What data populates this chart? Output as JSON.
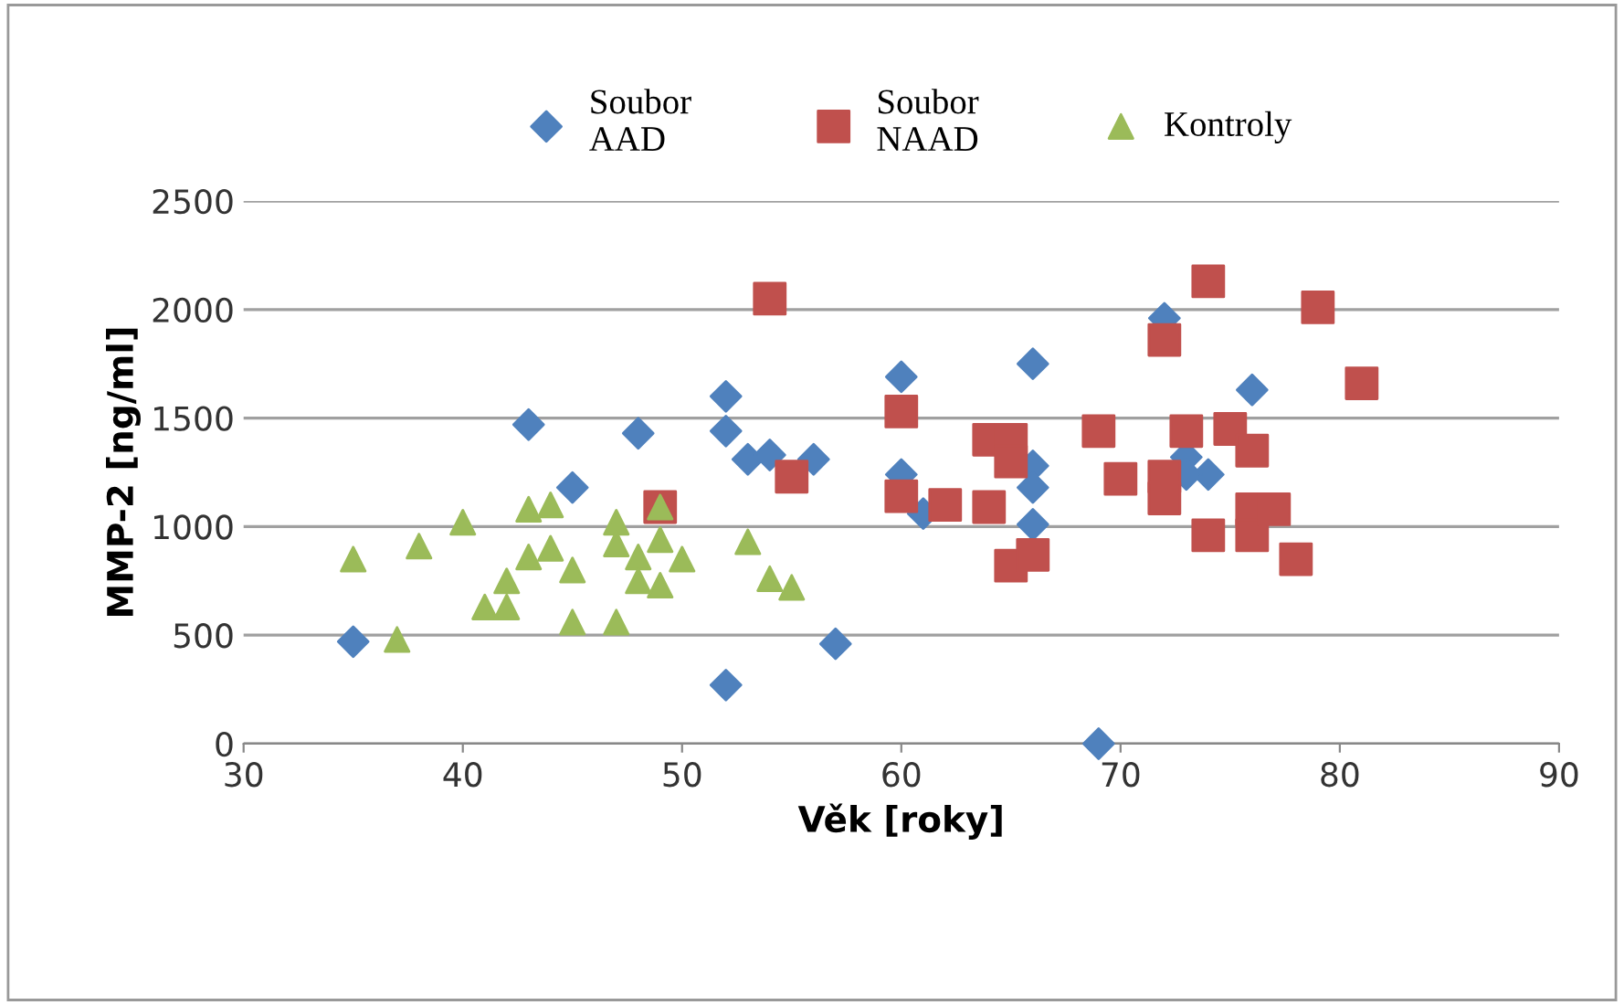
{
  "chart_data": {
    "type": "scatter",
    "xlabel": "Věk [roky]",
    "ylabel": "MMP-2 [ng/ml]",
    "xlim": [
      30,
      90
    ],
    "xticks": [
      30,
      40,
      50,
      60,
      70,
      80,
      90
    ],
    "ylim": [
      0,
      2500
    ],
    "yticks": [
      0,
      500,
      1000,
      1500,
      2000,
      2500
    ],
    "grid": "y",
    "legend": "top",
    "series": [
      {
        "name": "Soubor\nAAD",
        "color": "#4f81bd",
        "marker": "diamond",
        "x": [
          35,
          43,
          45,
          48,
          52,
          52,
          53,
          54,
          56,
          57,
          52,
          60,
          60,
          61,
          66,
          66,
          66,
          66,
          69,
          72,
          73,
          74,
          76,
          73
        ],
        "values": [
          470,
          1470,
          1180,
          1430,
          1600,
          1440,
          1310,
          1330,
          1310,
          460,
          270,
          1690,
          1240,
          1060,
          1750,
          1280,
          1180,
          1010,
          0,
          1960,
          1320,
          1240,
          1630,
          1240
        ]
      },
      {
        "name": "Soubor\nNAAD",
        "color": "#c0504d",
        "marker": "square",
        "x": [
          49,
          54,
          55,
          60,
          60,
          62,
          64,
          64,
          65,
          65,
          65,
          66,
          69,
          70,
          72,
          72,
          72,
          73,
          74,
          74,
          75,
          76,
          76,
          76,
          77,
          78,
          79,
          81
        ],
        "values": [
          1090,
          2050,
          1230,
          1530,
          1140,
          1100,
          1090,
          1400,
          1400,
          1300,
          820,
          870,
          1440,
          1220,
          1860,
          1230,
          1130,
          1440,
          2130,
          960,
          1450,
          1350,
          1080,
          960,
          1080,
          850,
          2010,
          1660
        ]
      },
      {
        "name": "Kontroly",
        "color": "#9bbb59",
        "marker": "triangle",
        "x": [
          35,
          37,
          38,
          40,
          41,
          42,
          42,
          43,
          43,
          44,
          44,
          45,
          45,
          47,
          47,
          47,
          48,
          48,
          49,
          49,
          49,
          50,
          53,
          54,
          55
        ],
        "values": [
          850,
          480,
          910,
          1020,
          630,
          630,
          750,
          860,
          1080,
          1100,
          900,
          800,
          560,
          1020,
          920,
          560,
          860,
          750,
          1090,
          730,
          940,
          850,
          930,
          760,
          720
        ]
      }
    ]
  }
}
